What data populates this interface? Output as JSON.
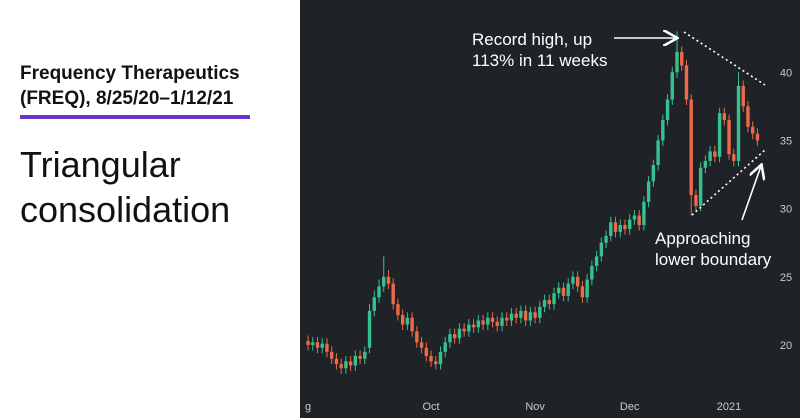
{
  "chart_data": {
    "type": "candlestick",
    "title": [
      "Frequency Therapeutics",
      "(FREQ), 8/25/20–1/12/21"
    ],
    "subtitle": [
      "Triangular",
      "consolidation"
    ],
    "annotations": [
      [
        "Record high, up",
        "113% in 11 weeks"
      ],
      [
        "Approaching",
        "lower boundary"
      ]
    ],
    "up_color": "#35c28f",
    "down_color": "#ec6a47",
    "background": "#1f2327",
    "xlim": [
      -1.7,
      104
    ],
    "ylim": [
      14.65,
      45.3
    ],
    "grid": false,
    "xticks": [
      {
        "value": 0,
        "label": "g"
      },
      {
        "value": 26,
        "label": "Oct"
      },
      {
        "value": 48,
        "label": "Nov"
      },
      {
        "value": 68,
        "label": "Dec"
      },
      {
        "value": 89,
        "label": "2021"
      }
    ],
    "yticks": [
      20,
      25,
      30,
      35,
      40
    ],
    "open": [
      20.3,
      20.0,
      20.2,
      19.8,
      20.1,
      19.5,
      19.0,
      18.6,
      18.3,
      18.8,
      18.5,
      19.2,
      19.0,
      19.8,
      22.5,
      23.5,
      24.3,
      25.0,
      24.5,
      23.0,
      22.2,
      21.5,
      22.0,
      21.0,
      20.2,
      19.8,
      19.2,
      18.8,
      18.6,
      19.5,
      20.2,
      20.8,
      20.5,
      21.2,
      21.0,
      21.5,
      21.3,
      21.8,
      21.5,
      22.0,
      21.7,
      21.4,
      22.0,
      21.8,
      22.3,
      22.0,
      22.5,
      21.8,
      22.4,
      22.0,
      22.8,
      23.3,
      23.0,
      23.8,
      24.2,
      23.6,
      24.5,
      25.0,
      24.3,
      23.5,
      24.8,
      25.8,
      26.5,
      27.5,
      28.0,
      29.0,
      28.3,
      28.8,
      28.5,
      29.2,
      29.5,
      28.8,
      30.5,
      32.0,
      33.2,
      35.0,
      36.5,
      38.0,
      40.0,
      41.5,
      40.5,
      38.0,
      31.0,
      30.2,
      33.0,
      33.5,
      34.2,
      33.8,
      37.0,
      36.5,
      34.0,
      33.5,
      39.0,
      37.5,
      36.0,
      35.5
    ],
    "high": [
      20.7,
      20.6,
      20.6,
      20.5,
      20.5,
      19.9,
      19.4,
      19.0,
      19.2,
      19.2,
      19.6,
      19.6,
      19.9,
      23.0,
      24.0,
      24.8,
      26.5,
      25.5,
      24.9,
      23.4,
      22.6,
      22.4,
      22.4,
      21.4,
      20.6,
      20.2,
      19.6,
      19.2,
      19.9,
      20.6,
      21.2,
      21.2,
      21.6,
      21.6,
      21.9,
      21.9,
      22.2,
      22.2,
      22.4,
      22.4,
      22.1,
      22.4,
      22.4,
      22.7,
      22.7,
      22.9,
      22.9,
      22.8,
      22.8,
      23.2,
      23.7,
      23.7,
      24.2,
      24.6,
      24.6,
      24.9,
      25.4,
      25.4,
      24.7,
      25.2,
      26.2,
      26.9,
      27.9,
      28.4,
      29.4,
      29.4,
      29.2,
      29.2,
      29.6,
      29.9,
      29.9,
      30.9,
      32.4,
      33.6,
      35.4,
      36.9,
      38.4,
      40.4,
      43.0,
      41.9,
      40.9,
      38.4,
      31.4,
      33.4,
      33.9,
      34.6,
      34.6,
      37.4,
      37.4,
      36.9,
      34.4,
      40.0,
      39.4,
      37.9,
      36.4,
      35.9
    ],
    "low": [
      19.6,
      19.6,
      19.4,
      19.4,
      19.1,
      18.6,
      18.2,
      17.9,
      17.9,
      18.1,
      18.1,
      18.6,
      18.6,
      19.4,
      22.1,
      23.1,
      23.9,
      24.1,
      22.6,
      21.8,
      21.1,
      21.1,
      20.6,
      19.8,
      19.4,
      18.8,
      18.4,
      18.2,
      18.2,
      19.1,
      19.8,
      20.1,
      20.1,
      20.6,
      20.6,
      20.9,
      20.9,
      21.1,
      21.1,
      21.3,
      21.0,
      21.0,
      21.4,
      21.4,
      21.6,
      21.6,
      21.4,
      21.4,
      21.6,
      21.6,
      22.4,
      22.6,
      22.6,
      23.4,
      23.2,
      23.2,
      24.1,
      23.9,
      23.1,
      23.1,
      24.4,
      25.4,
      26.1,
      27.1,
      27.6,
      27.9,
      27.9,
      28.1,
      28.1,
      28.8,
      28.4,
      28.4,
      30.1,
      31.6,
      32.8,
      34.6,
      36.1,
      37.6,
      39.6,
      40.1,
      37.6,
      29.5,
      29.8,
      29.8,
      32.6,
      33.1,
      33.4,
      33.4,
      36.1,
      33.6,
      33.1,
      33.1,
      37.1,
      35.6,
      35.1,
      34.6
    ],
    "close": [
      20.0,
      20.2,
      19.8,
      20.1,
      19.5,
      19.0,
      18.6,
      18.3,
      18.8,
      18.5,
      19.2,
      19.0,
      19.5,
      22.5,
      23.5,
      24.3,
      25.0,
      24.5,
      23.0,
      22.2,
      21.5,
      22.0,
      21.0,
      20.2,
      19.8,
      19.2,
      18.8,
      18.6,
      19.5,
      20.2,
      20.8,
      20.5,
      21.2,
      21.0,
      21.5,
      21.3,
      21.8,
      21.5,
      22.0,
      21.7,
      21.4,
      22.0,
      21.8,
      22.3,
      22.0,
      22.5,
      21.8,
      22.4,
      22.0,
      22.8,
      23.3,
      23.0,
      23.8,
      24.2,
      23.6,
      24.5,
      25.0,
      24.3,
      23.5,
      24.8,
      25.8,
      26.5,
      27.5,
      28.0,
      29.0,
      28.3,
      28.8,
      28.5,
      29.2,
      29.5,
      28.8,
      30.5,
      32.0,
      33.2,
      35.0,
      36.5,
      38.0,
      40.0,
      41.5,
      40.5,
      38.0,
      31.0,
      30.2,
      33.0,
      33.5,
      34.2,
      33.8,
      37.0,
      36.5,
      34.0,
      33.5,
      39.0,
      37.5,
      36.0,
      35.5,
      35.0
    ]
  }
}
